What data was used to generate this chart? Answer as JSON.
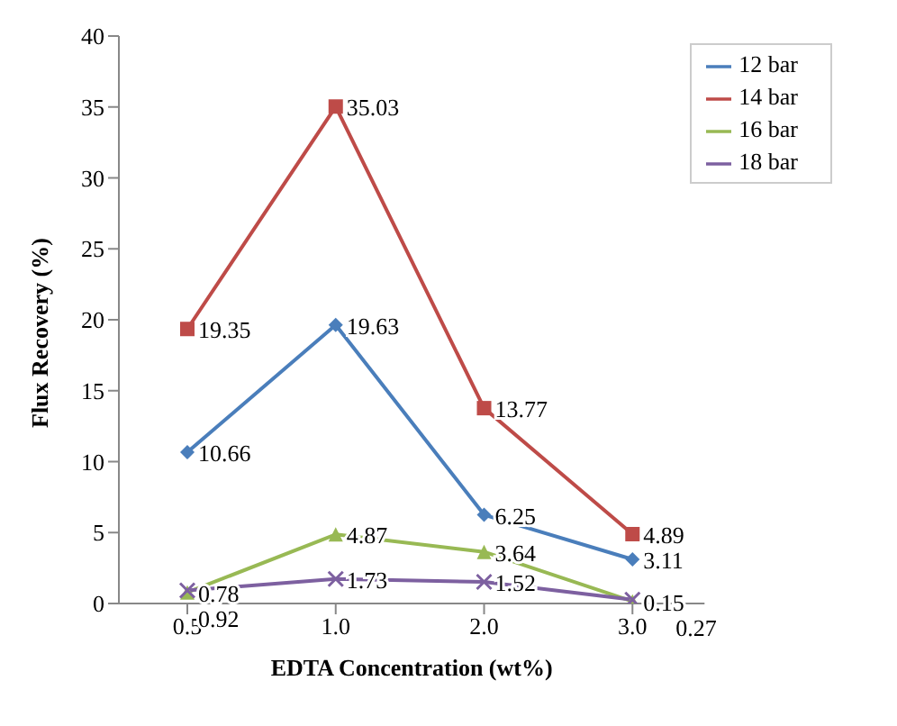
{
  "chart_data": {
    "type": "line",
    "xlabel": "EDTA Concentration (wt%)",
    "ylabel": "Flux Recovery (%)",
    "categories": [
      "0.5",
      "1.0",
      "2.0",
      "3.0"
    ],
    "series": [
      {
        "name": "12 bar",
        "color": "#4a7ebb",
        "marker": "diamond",
        "values": [
          10.66,
          19.63,
          6.25,
          3.11
        ]
      },
      {
        "name": "14 bar",
        "color": "#be4b48",
        "marker": "square",
        "values": [
          19.35,
          35.03,
          13.77,
          4.89
        ]
      },
      {
        "name": "16 bar",
        "color": "#98b954",
        "marker": "triangle",
        "values": [
          0.78,
          4.87,
          3.64,
          0.15
        ]
      },
      {
        "name": "18 bar",
        "color": "#7d60a0",
        "marker": "cross",
        "values": [
          0.92,
          1.73,
          1.52,
          0.27
        ]
      }
    ],
    "ylim": [
      0,
      40
    ],
    "yticks": [
      0,
      5,
      10,
      15,
      20,
      25,
      30,
      35,
      40
    ],
    "legend": "top right",
    "data_labels": true,
    "line_style": "solid"
  }
}
